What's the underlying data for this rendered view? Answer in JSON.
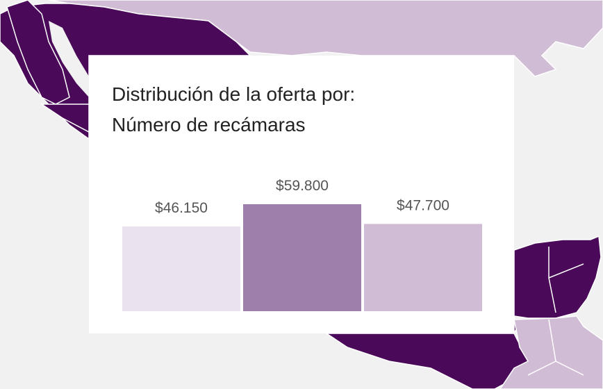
{
  "chart_data": {
    "type": "bar",
    "title_line1": "Distribución de la oferta por:",
    "title_line2": "Número de recámaras",
    "values": [
      46150,
      59800,
      47700
    ],
    "value_labels": [
      "$46.150",
      "$59.800",
      "$47.700"
    ],
    "colors": [
      "#ebe2ef",
      "#9e7fab",
      "#d1bcd6"
    ],
    "grid": false,
    "legend": "none"
  },
  "map_colors": {
    "dark": "#4a0a59",
    "light": "#d1bcd6",
    "land": "#f1f1f1"
  }
}
